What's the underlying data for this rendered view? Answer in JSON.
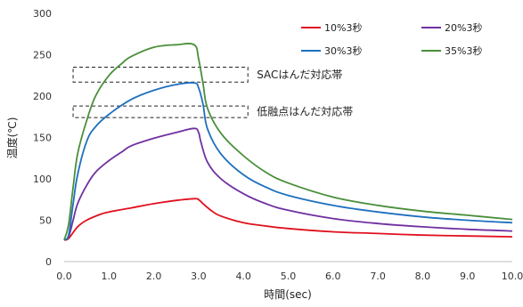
{
  "chart_data": {
    "type": "line",
    "title": "",
    "xlabel": "時間(sec)",
    "ylabel": "温度(℃)",
    "xlim": [
      0,
      10
    ],
    "ylim": [
      0,
      300
    ],
    "x_ticks": [
      "0.0",
      "1.0",
      "2.0",
      "3.0",
      "4.0",
      "5.0",
      "6.0",
      "7.0",
      "8.0",
      "9.0",
      "10.0"
    ],
    "y_ticks": [
      "0",
      "50",
      "100",
      "150",
      "200",
      "250",
      "300"
    ],
    "grid": false,
    "legend_position": "top-right",
    "series": [
      {
        "name": "10%3秒",
        "color": "#e0101e",
        "x": [
          0.0,
          0.1,
          0.3,
          0.5,
          0.8,
          1.0,
          1.5,
          2.0,
          2.5,
          2.9,
          3.0,
          3.1,
          3.3,
          3.5,
          4.0,
          4.5,
          5.0,
          6.0,
          7.0,
          8.0,
          9.0,
          10.0
        ],
        "y": [
          26,
          28,
          42,
          50,
          57,
          60,
          65,
          70,
          74,
          76,
          75,
          70,
          61,
          55,
          47,
          43,
          40,
          36,
          34,
          32,
          31,
          30
        ]
      },
      {
        "name": "20%3秒",
        "color": "#7030a0",
        "x": [
          0.0,
          0.1,
          0.2,
          0.3,
          0.5,
          0.7,
          1.0,
          1.3,
          1.5,
          2.0,
          2.5,
          2.9,
          3.0,
          3.05,
          3.2,
          3.5,
          4.0,
          4.5,
          5.0,
          6.0,
          7.0,
          8.0,
          9.0,
          10.0
        ],
        "y": [
          26,
          30,
          50,
          70,
          92,
          108,
          122,
          133,
          140,
          149,
          156,
          161,
          156,
          145,
          120,
          100,
          82,
          70,
          62,
          52,
          46,
          42,
          39,
          37
        ]
      },
      {
        "name": "30%3秒",
        "color": "#1e6fbf",
        "x": [
          0.0,
          0.1,
          0.2,
          0.3,
          0.5,
          0.7,
          1.0,
          1.5,
          2.0,
          2.5,
          2.9,
          3.0,
          3.1,
          3.2,
          3.5,
          4.0,
          4.5,
          5.0,
          6.0,
          7.0,
          8.0,
          9.0,
          10.0
        ],
        "y": [
          27,
          32,
          70,
          105,
          145,
          163,
          178,
          196,
          207,
          214,
          216,
          210,
          190,
          160,
          130,
          105,
          90,
          80,
          68,
          60,
          54,
          50,
          47
        ]
      },
      {
        "name": "35%3秒",
        "color": "#4a8f3a",
        "x": [
          0.0,
          0.1,
          0.2,
          0.3,
          0.5,
          0.7,
          1.0,
          1.3,
          1.5,
          2.0,
          2.5,
          2.9,
          3.0,
          3.1,
          3.2,
          3.5,
          4.0,
          4.5,
          5.0,
          6.0,
          7.0,
          8.0,
          9.0,
          10.0
        ],
        "y": [
          26,
          45,
          90,
          130,
          170,
          200,
          225,
          240,
          248,
          259,
          262,
          262,
          245,
          215,
          185,
          155,
          128,
          108,
          95,
          78,
          68,
          61,
          56,
          51
        ]
      }
    ],
    "annotations": [
      {
        "label": "SACはんだ対応帯",
        "y_range": [
          217,
          235
        ],
        "x_range": [
          0.2,
          4.1
        ]
      },
      {
        "label": "低融点はんだ対応帯",
        "y_range": [
          174,
          188
        ],
        "x_range": [
          0.2,
          4.1
        ]
      }
    ]
  }
}
